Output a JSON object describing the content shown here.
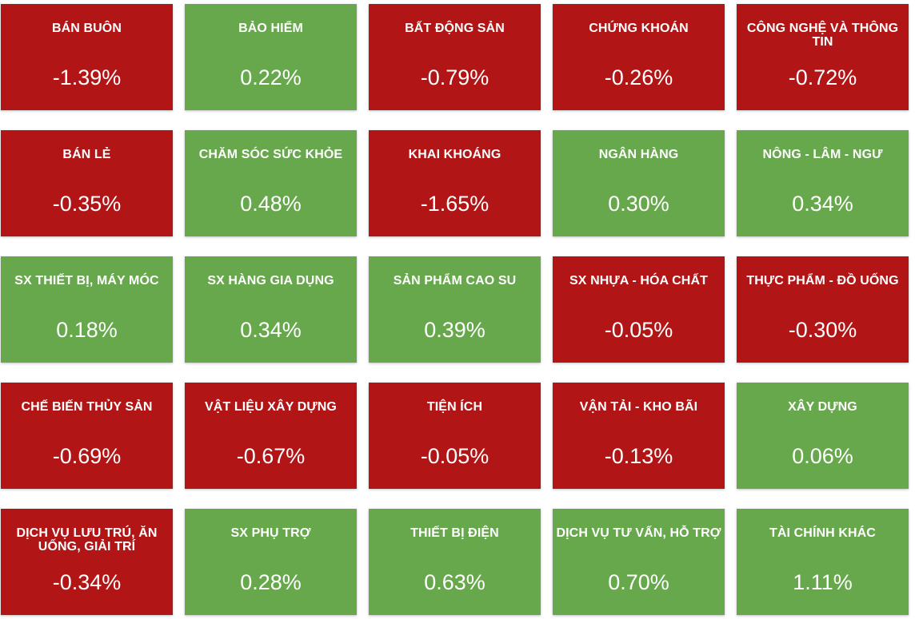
{
  "colors": {
    "down": "#b21516",
    "up": "#68a84d",
    "text": "#ffffff"
  },
  "sectors": [
    {
      "name": "BÁN BUÔN",
      "change": "-1.39%",
      "direction": "down"
    },
    {
      "name": "BẢO HIỂM",
      "change": "0.22%",
      "direction": "up"
    },
    {
      "name": "BẤT ĐỘNG SẢN",
      "change": "-0.79%",
      "direction": "down"
    },
    {
      "name": "CHỨNG KHOÁN",
      "change": "-0.26%",
      "direction": "down"
    },
    {
      "name": "CÔNG NGHỆ VÀ THÔNG TIN",
      "change": "-0.72%",
      "direction": "down"
    },
    {
      "name": "BÁN LẺ",
      "change": "-0.35%",
      "direction": "down"
    },
    {
      "name": "CHĂM SÓC SỨC KHỎE",
      "change": "0.48%",
      "direction": "up"
    },
    {
      "name": "KHAI KHOÁNG",
      "change": "-1.65%",
      "direction": "down"
    },
    {
      "name": "NGÂN HÀNG",
      "change": "0.30%",
      "direction": "up"
    },
    {
      "name": "NÔNG - LÂM - NGƯ",
      "change": "0.34%",
      "direction": "up"
    },
    {
      "name": "SX THIẾT BỊ, MÁY MÓC",
      "change": "0.18%",
      "direction": "up"
    },
    {
      "name": "SX HÀNG GIA DỤNG",
      "change": "0.34%",
      "direction": "up"
    },
    {
      "name": "SẢN PHẨM CAO SU",
      "change": "0.39%",
      "direction": "up"
    },
    {
      "name": "SX NHỰA - HÓA CHẤT",
      "change": "-0.05%",
      "direction": "down"
    },
    {
      "name": "THỰC PHẨM - ĐỒ UỐNG",
      "change": "-0.30%",
      "direction": "down"
    },
    {
      "name": "CHẾ BIẾN THỦY SẢN",
      "change": "-0.69%",
      "direction": "down"
    },
    {
      "name": "VẬT LIỆU XÂY DỰNG",
      "change": "-0.67%",
      "direction": "down"
    },
    {
      "name": "TIỆN ÍCH",
      "change": "-0.05%",
      "direction": "down"
    },
    {
      "name": "VẬN TẢI - KHO BÃI",
      "change": "-0.13%",
      "direction": "down"
    },
    {
      "name": "XÂY DỰNG",
      "change": "0.06%",
      "direction": "up"
    },
    {
      "name": "DỊCH VỤ LƯU TRÚ, ĂN UỐNG, GIẢI TRÍ",
      "change": "-0.34%",
      "direction": "down"
    },
    {
      "name": "SX PHỤ TRỢ",
      "change": "0.28%",
      "direction": "up"
    },
    {
      "name": "THIẾT BỊ ĐIỆN",
      "change": "0.63%",
      "direction": "up"
    },
    {
      "name": "DỊCH VỤ TƯ VẤN, HỖ TRỢ",
      "change": "0.70%",
      "direction": "up"
    },
    {
      "name": "TÀI CHÍNH KHÁC",
      "change": "1.11%",
      "direction": "up"
    }
  ]
}
